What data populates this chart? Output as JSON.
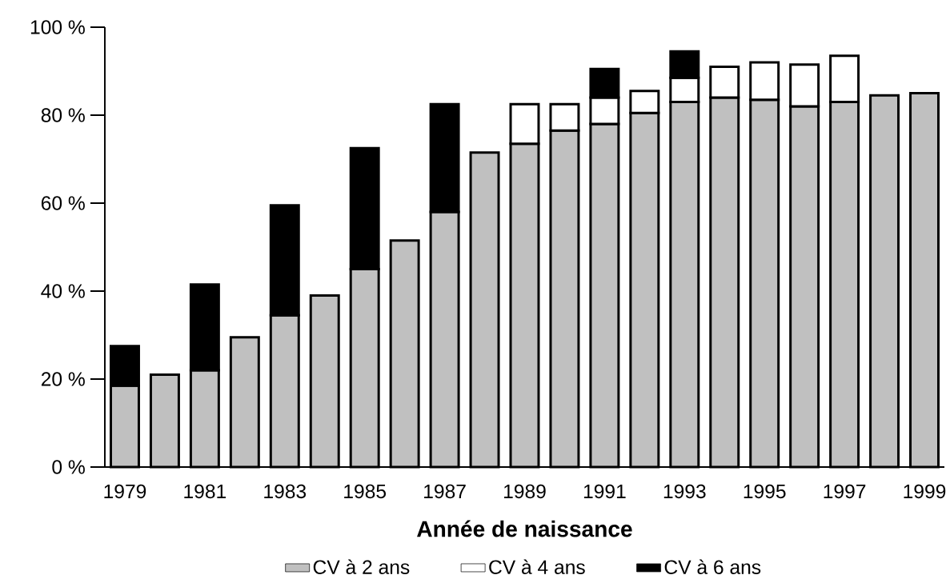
{
  "chart_data": {
    "type": "bar",
    "xlabel": "Année de naissance",
    "categories": [
      "1979",
      null,
      "1981",
      null,
      "1983",
      null,
      "1985",
      null,
      "1987",
      null,
      "1989",
      null,
      "1991",
      null,
      "1993",
      null,
      "1995",
      null,
      "1997",
      null,
      "1999"
    ],
    "series": [
      {
        "name": "CV à 2 ans",
        "color": "#c0c0c0",
        "values": [
          18.5,
          21,
          22,
          29.5,
          34.5,
          39,
          45,
          51.5,
          58,
          71.5,
          73.5,
          76.5,
          78,
          80.5,
          83,
          84,
          83.5,
          82,
          83,
          84.5,
          85
        ]
      },
      {
        "name": "CV à 4 ans",
        "color": "#ffffff",
        "values": [
          null,
          null,
          null,
          null,
          null,
          null,
          null,
          null,
          null,
          null,
          9,
          6,
          6,
          5,
          5.5,
          7,
          8.5,
          9.5,
          10.5,
          null,
          null
        ]
      },
      {
        "name": "CV à 6 ans",
        "color": "#000000",
        "values": [
          9,
          null,
          19.5,
          null,
          25,
          null,
          27.5,
          null,
          24.5,
          null,
          null,
          null,
          6.5,
          null,
          6,
          null,
          null,
          null,
          null,
          null,
          null
        ]
      }
    ],
    "stacked": true,
    "legend": "bottom",
    "ylim": [
      0,
      100
    ],
    "yticks": [
      {
        "value": 0,
        "label": "0 %"
      },
      {
        "value": 20,
        "label": "20 %"
      },
      {
        "value": 40,
        "label": "40 %"
      },
      {
        "value": 60,
        "label": "60 %"
      },
      {
        "value": 80,
        "label": "80 %"
      },
      {
        "value": 100,
        "label": "100 %"
      }
    ]
  }
}
